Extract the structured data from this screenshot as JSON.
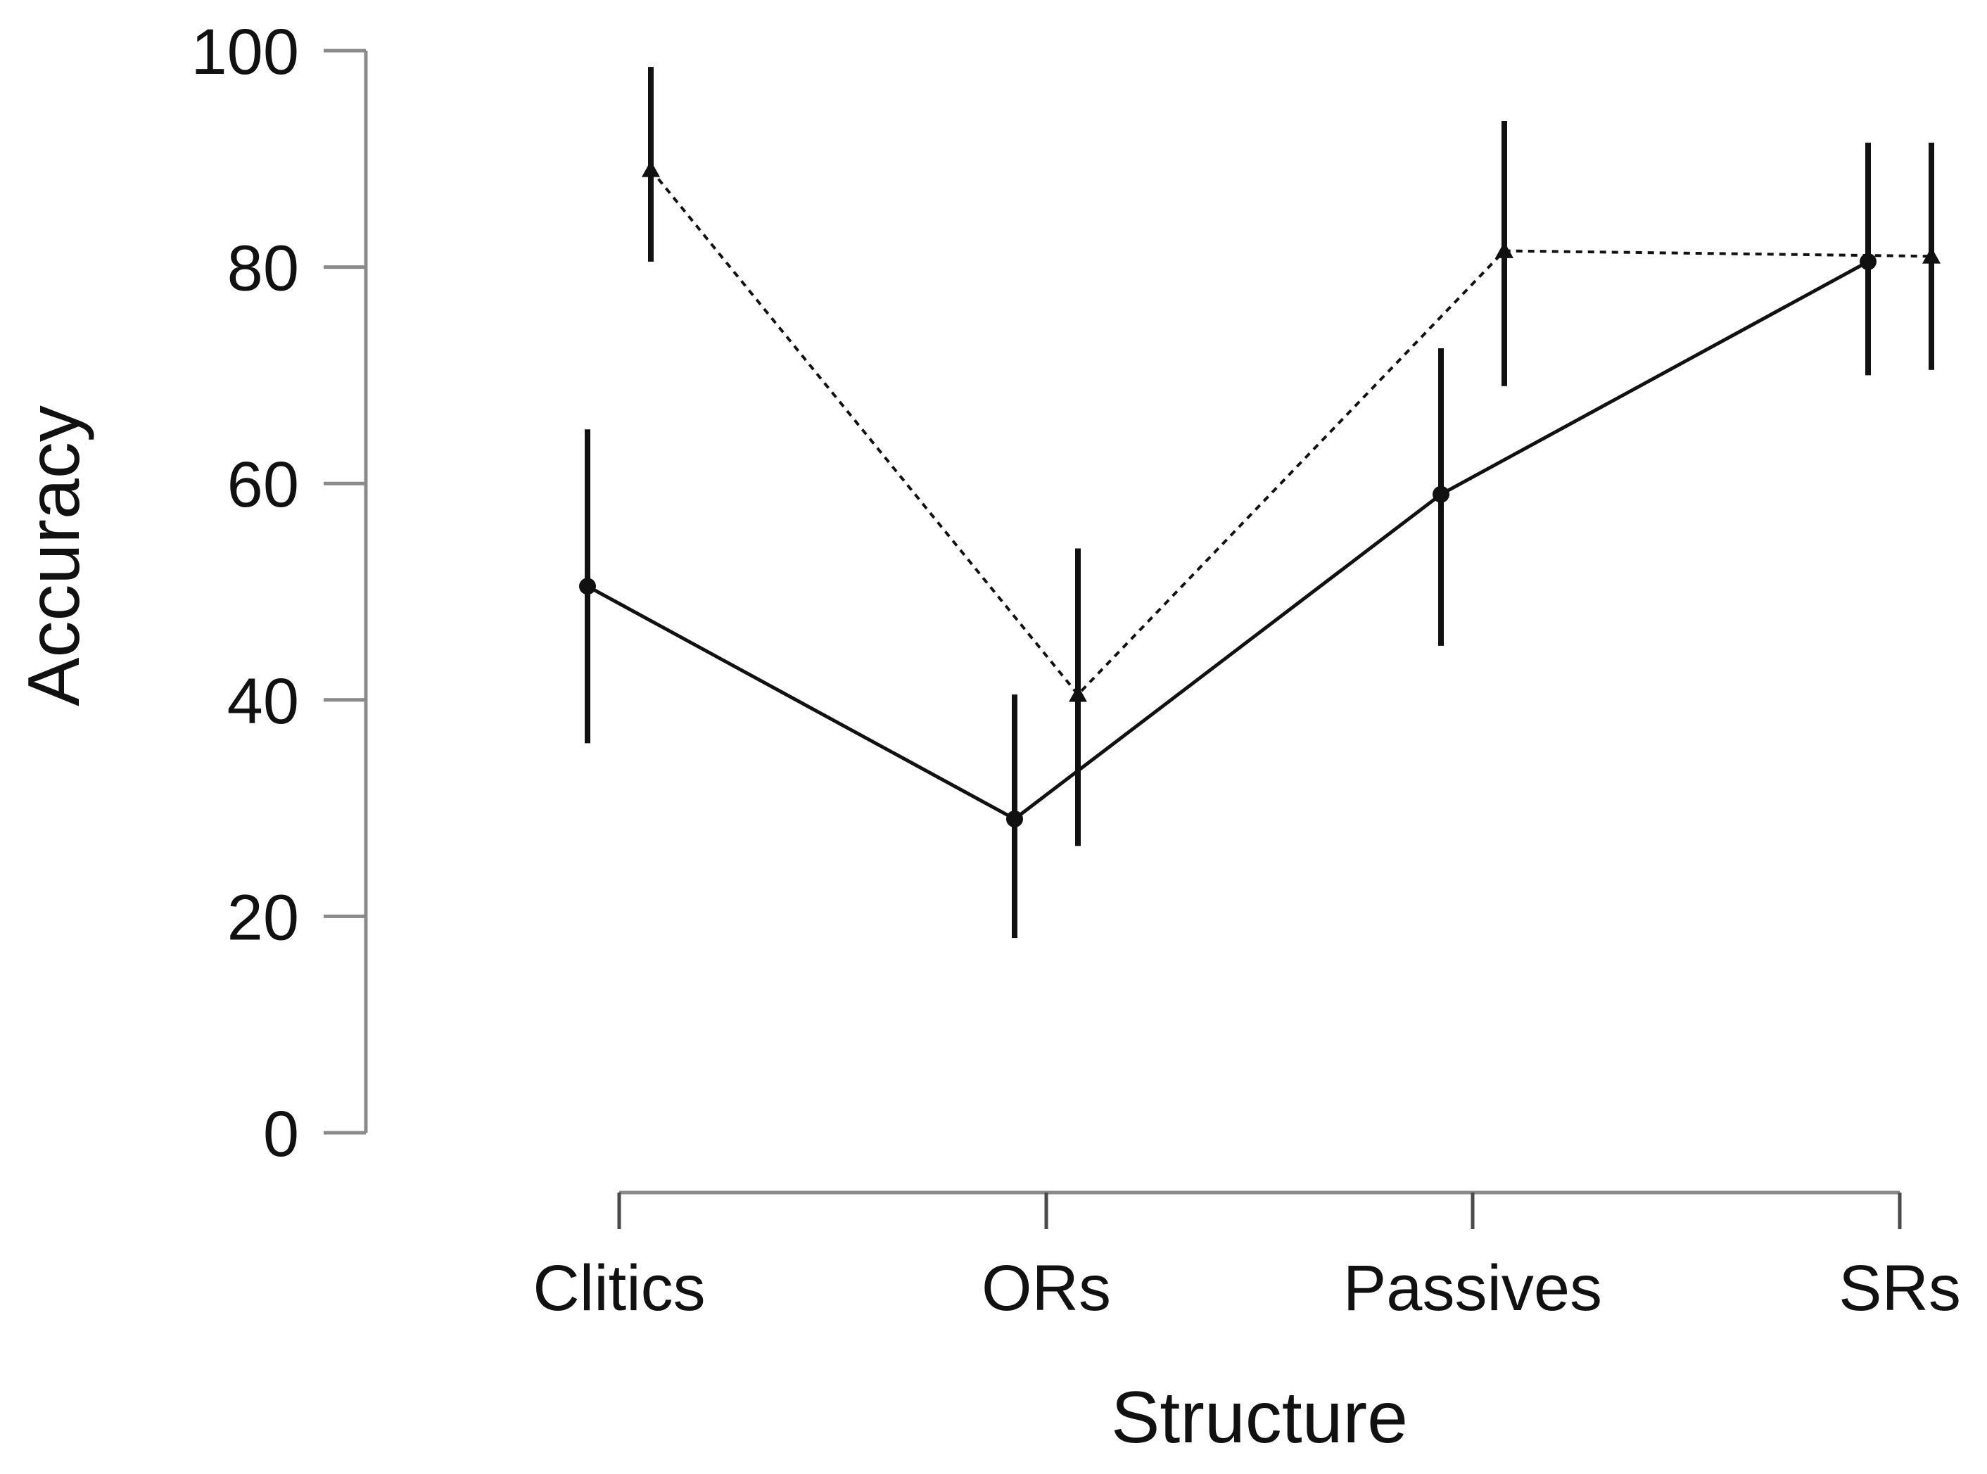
{
  "chart_data": {
    "type": "line",
    "title": "",
    "xlabel": "Structure",
    "ylabel": "Accuracy",
    "categories": [
      "Clitics",
      "ORs",
      "Passives",
      "SRs"
    ],
    "ylim": [
      0,
      100
    ],
    "yticks": [
      0,
      20,
      40,
      60,
      80,
      100
    ],
    "grid": false,
    "legend": "none",
    "series": [
      {
        "style": "solid",
        "marker": "circle",
        "color": "#111111",
        "values": [
          50.5,
          29,
          59,
          80.5
        ],
        "error_low": [
          36,
          18,
          45,
          70
        ],
        "error_high": [
          65,
          40.5,
          72.5,
          91.5
        ]
      },
      {
        "style": "dotted",
        "marker": "triangle",
        "color": "#111111",
        "values": [
          89,
          40.5,
          81.5,
          81
        ],
        "error_low": [
          80.5,
          26.5,
          69,
          70.5
        ],
        "error_high": [
          98.5,
          54,
          93.5,
          91.5
        ]
      }
    ]
  }
}
